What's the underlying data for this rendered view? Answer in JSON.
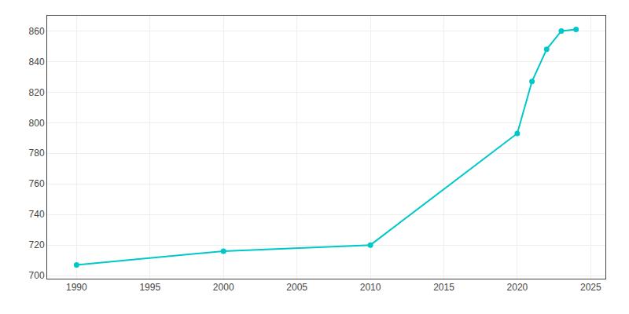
{
  "chart_data": {
    "type": "line",
    "x": [
      1990,
      2000,
      2010,
      2020,
      2021,
      2022,
      2023,
      2024
    ],
    "values": [
      707,
      716,
      720,
      793,
      827,
      848,
      860,
      861
    ],
    "color": "#00C8C8",
    "marker": "circle",
    "xlim": [
      1988,
      2026
    ],
    "xticks": [
      1990,
      1995,
      2000,
      2005,
      2010,
      2015,
      2020,
      2025
    ],
    "ylim": [
      698,
      870
    ],
    "yticks": [
      700,
      720,
      740,
      760,
      780,
      800,
      820,
      840,
      860
    ],
    "grid": true
  }
}
